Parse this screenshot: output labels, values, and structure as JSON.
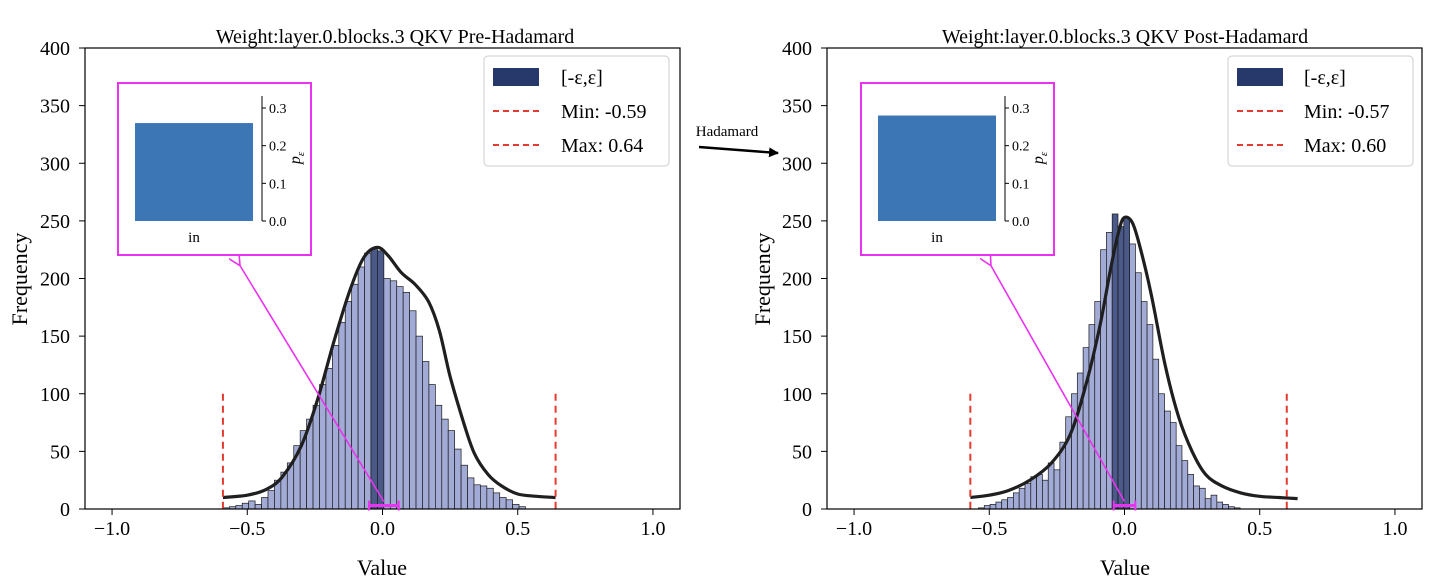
{
  "figure": {
    "arrow_label": "Hadamard",
    "colors": {
      "bar_fill": "#a2abd6",
      "bar_highlight": "#4a5987",
      "bar_edge": "#1a1a1a",
      "curve": "#1f1f1f",
      "dashed": "#e33b2e",
      "legend_patch": "#27386b",
      "magenta": "#ea33f0",
      "inset_bar": "#3c76b4"
    }
  },
  "chart_data": [
    {
      "type": "bar",
      "title": "Weight:layer.0.blocks.3 QKV Pre-Hadamard",
      "xlabel": "Value",
      "ylabel": "Frequency",
      "xlim": [
        -1.1,
        1.1
      ],
      "ylim": [
        0,
        400
      ],
      "xticks": [
        -1.0,
        -0.5,
        0.0,
        0.5,
        1.0
      ],
      "xtick_labels": [
        "−1.0",
        "−0.5",
        "0.0",
        "0.5",
        "1.0"
      ],
      "yticks": [
        0,
        50,
        100,
        150,
        200,
        250,
        300,
        350,
        400
      ],
      "ytick_labels": [
        "0",
        "50",
        "100",
        "150",
        "200",
        "250",
        "300",
        "350",
        "400"
      ],
      "hist_start": -0.59,
      "bin_width": 0.0238,
      "epsilon_bins": [
        23,
        24
      ],
      "counts": [
        1,
        2,
        3,
        5,
        7,
        4,
        10,
        16,
        25,
        32,
        40,
        55,
        68,
        78,
        90,
        108,
        122,
        142,
        162,
        180,
        195,
        210,
        222,
        226,
        224,
        200,
        198,
        193,
        188,
        172,
        150,
        128,
        108,
        90,
        78,
        68,
        52,
        38,
        27,
        21,
        20,
        18,
        14,
        10,
        8,
        4,
        2
      ],
      "kde": [
        [
          -0.59,
          10
        ],
        [
          -0.5,
          12
        ],
        [
          -0.43,
          17
        ],
        [
          -0.37,
          28
        ],
        [
          -0.3,
          55
        ],
        [
          -0.24,
          95
        ],
        [
          -0.18,
          145
        ],
        [
          -0.12,
          190
        ],
        [
          -0.07,
          218
        ],
        [
          -0.02,
          227
        ],
        [
          0.02,
          220
        ],
        [
          0.07,
          205
        ],
        [
          0.12,
          195
        ],
        [
          0.17,
          180
        ],
        [
          0.21,
          155
        ],
        [
          0.25,
          115
        ],
        [
          0.3,
          75
        ],
        [
          0.34,
          48
        ],
        [
          0.39,
          30
        ],
        [
          0.44,
          20
        ],
        [
          0.5,
          13
        ],
        [
          0.57,
          11
        ],
        [
          0.64,
          10
        ]
      ],
      "min_value": -0.59,
      "max_value": 0.64,
      "legend": {
        "position": "top-right",
        "entries": [
          "[-ε,ε]",
          "Min: -0.59",
          "Max: 0.64"
        ]
      },
      "epsilon_range": [
        -0.05,
        0.06
      ],
      "inset": {
        "category": "in",
        "value": 0.26,
        "ylabel": "pε",
        "ylim": [
          0,
          0.3
        ],
        "yticks": [
          "0.0",
          "0.1",
          "0.2",
          "0.3"
        ]
      }
    },
    {
      "type": "bar",
      "title": "Weight:layer.0.blocks.3 QKV Post-Hadamard",
      "xlabel": "Value",
      "ylabel": "Frequency",
      "xlim": [
        -1.1,
        1.1
      ],
      "ylim": [
        0,
        400
      ],
      "xticks": [
        -1.0,
        -0.5,
        0.0,
        0.5,
        1.0
      ],
      "xtick_labels": [
        "−1.0",
        "−0.5",
        "0.0",
        "0.5",
        "1.0"
      ],
      "yticks": [
        0,
        50,
        100,
        150,
        200,
        250,
        300,
        350,
        400
      ],
      "ytick_labels": [
        "0",
        "50",
        "100",
        "150",
        "200",
        "250",
        "300",
        "350",
        "400"
      ],
      "hist_start": -0.54,
      "bin_width": 0.0215,
      "epsilon_bins": [
        23,
        24,
        25
      ],
      "counts": [
        1,
        3,
        4,
        6,
        8,
        10,
        14,
        18,
        22,
        28,
        30,
        25,
        40,
        34,
        58,
        80,
        100,
        118,
        140,
        160,
        180,
        225,
        240,
        256,
        245,
        253,
        230,
        205,
        180,
        160,
        130,
        100,
        85,
        75,
        55,
        42,
        30,
        20,
        18,
        9,
        12,
        6,
        4,
        2,
        1
      ],
      "kde": [
        [
          -0.57,
          10
        ],
        [
          -0.5,
          12
        ],
        [
          -0.43,
          16
        ],
        [
          -0.35,
          25
        ],
        [
          -0.27,
          40
        ],
        [
          -0.2,
          65
        ],
        [
          -0.14,
          110
        ],
        [
          -0.09,
          160
        ],
        [
          -0.05,
          210
        ],
        [
          -0.02,
          242
        ],
        [
          0.0,
          253
        ],
        [
          0.03,
          248
        ],
        [
          0.06,
          225
        ],
        [
          0.1,
          185
        ],
        [
          0.15,
          125
        ],
        [
          0.2,
          80
        ],
        [
          0.25,
          50
        ],
        [
          0.3,
          30
        ],
        [
          0.36,
          20
        ],
        [
          0.43,
          14
        ],
        [
          0.5,
          11
        ],
        [
          0.57,
          10
        ],
        [
          0.64,
          9
        ]
      ],
      "min_value": -0.57,
      "max_value": 0.6,
      "legend": {
        "position": "top-right",
        "entries": [
          "[-ε,ε]",
          "Min: -0.57",
          "Max: 0.60"
        ]
      },
      "epsilon_range": [
        -0.04,
        0.04
      ],
      "inset": {
        "category": "in",
        "value": 0.28,
        "ylabel": "pε",
        "ylim": [
          0,
          0.3
        ],
        "yticks": [
          "0.0",
          "0.1",
          "0.2",
          "0.3"
        ]
      }
    }
  ]
}
